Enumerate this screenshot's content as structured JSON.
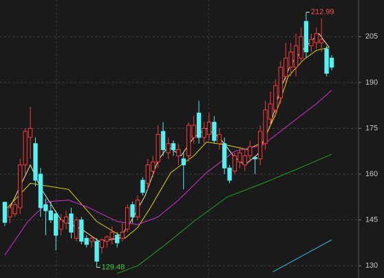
{
  "chart_data": {
    "type": "candlestick",
    "open": [
      150.8,
      146,
      147,
      149,
      163,
      172,
      170,
      160,
      150,
      148,
      147,
      142,
      144,
      147,
      139,
      145,
      139,
      138,
      138,
      136,
      138,
      139,
      140,
      139,
      142,
      150,
      146,
      158,
      157,
      161,
      164,
      174,
      167,
      170,
      166,
      165,
      166,
      172,
      180,
      172,
      173,
      177,
      170,
      170,
      162,
      161,
      164,
      163,
      166,
      165.5,
      165,
      170,
      178,
      181,
      185,
      192,
      195,
      195,
      198,
      210,
      202,
      203,
      203,
      201,
      198
    ],
    "high": [
      151,
      150,
      151,
      165,
      175,
      182,
      172,
      162,
      152,
      151,
      148,
      147,
      148,
      149,
      146,
      146,
      140,
      140,
      139,
      139,
      140,
      143,
      141,
      144,
      150,
      151,
      153,
      159,
      165,
      166,
      176,
      177,
      172,
      171,
      170,
      167,
      177,
      179,
      184,
      177,
      180,
      179,
      175,
      172,
      163,
      167,
      169,
      168,
      171,
      166,
      176,
      184,
      187,
      191,
      197,
      203,
      203,
      206,
      208,
      212.99,
      206,
      208,
      211,
      202,
      199
    ],
    "low": [
      143,
      144,
      146,
      147,
      160,
      165,
      156,
      146,
      140,
      144,
      135,
      140,
      142,
      139,
      138,
      137,
      136,
      136,
      129.48,
      134,
      136,
      137,
      136,
      138,
      141,
      144,
      145,
      153,
      155,
      159,
      162,
      166,
      165,
      166,
      163,
      155,
      164,
      170,
      170,
      170,
      171,
      170,
      168,
      160,
      157,
      160,
      162,
      161,
      164,
      160,
      163,
      168,
      176,
      179,
      183,
      190,
      192,
      192,
      197,
      198,
      200,
      201,
      200,
      192,
      194
    ],
    "close": [
      144.2,
      149,
      150,
      163,
      174,
      175,
      158,
      149,
      148,
      145,
      140,
      145,
      146,
      141,
      145,
      138,
      137,
      139,
      131.5,
      138.5,
      139.5,
      141,
      137.5,
      141,
      149,
      146,
      151.5,
      154,
      163,
      164,
      173,
      168,
      170,
      168,
      168,
      163,
      176,
      176,
      172,
      175,
      177,
      171,
      173,
      162,
      158,
      166,
      167,
      166,
      169,
      165,
      174,
      181,
      183,
      189,
      195,
      198,
      200,
      202,
      205,
      200,
      204,
      206,
      204,
      193,
      195
    ],
    "up_color": "#ff3b3b",
    "down_color": "#54f2f2",
    "lines": [
      {
        "color": "#f5e6b0",
        "x": [
          1,
          5,
          7,
          11,
          15,
          18.5,
          22.5,
          24.5,
          27.5,
          30,
          32,
          34.5,
          37,
          39.5,
          42,
          45,
          47,
          49.5,
          52,
          54,
          56,
          58.5,
          61.5,
          63.5
        ],
        "values": [
          149,
          163,
          155.5,
          145,
          142,
          138,
          139,
          144,
          153,
          164.5,
          169,
          166,
          172,
          175,
          172,
          165.5,
          163,
          166.5,
          176,
          188,
          196,
          201,
          206,
          201.5
        ]
      },
      {
        "color": "#e8d800",
        "x": [
          0.5,
          5,
          12.5,
          18,
          23.5,
          26,
          28.5,
          32.5,
          37,
          39.5,
          43.5,
          47.5,
          50.5,
          53,
          55.5,
          58.5,
          61,
          63.5
        ],
        "values": [
          149,
          157,
          155,
          144.5,
          139,
          142.5,
          149,
          160.5,
          166,
          170.5,
          169.5,
          168,
          170.5,
          179.5,
          192,
          197.5,
          200.5,
          201.5
        ]
      },
      {
        "color": "#d633d6",
        "x": [
          0,
          4.5,
          8.5,
          12.5,
          16.5,
          22,
          26,
          30,
          34,
          39.5,
          45,
          50.5,
          55.5,
          61,
          64
        ],
        "values": [
          133.5,
          144.5,
          151,
          151.5,
          149,
          144.5,
          143.5,
          146,
          151.5,
          160.5,
          167.5,
          169.5,
          176,
          183,
          187.5
        ]
      },
      {
        "color": "#1fa81f",
        "x": [
          22,
          26,
          31.5,
          37,
          43.5,
          50.5,
          57,
          64
        ],
        "values": [
          127.5,
          130,
          137,
          144.5,
          152.5,
          157,
          161.5,
          166.5
        ]
      },
      {
        "color": "#3ab6e6",
        "x": [
          52.5,
          58.5,
          64
        ],
        "values": [
          128,
          133.5,
          138.5
        ]
      }
    ],
    "max_label": "212.99",
    "min_label": "129.48",
    "max_color": "#ff4d4d",
    "min_color": "#3ecf3e",
    "ylim": [
      126,
      217
    ],
    "yticks": [
      130,
      145,
      160,
      175,
      190,
      205
    ],
    "grid": true
  }
}
